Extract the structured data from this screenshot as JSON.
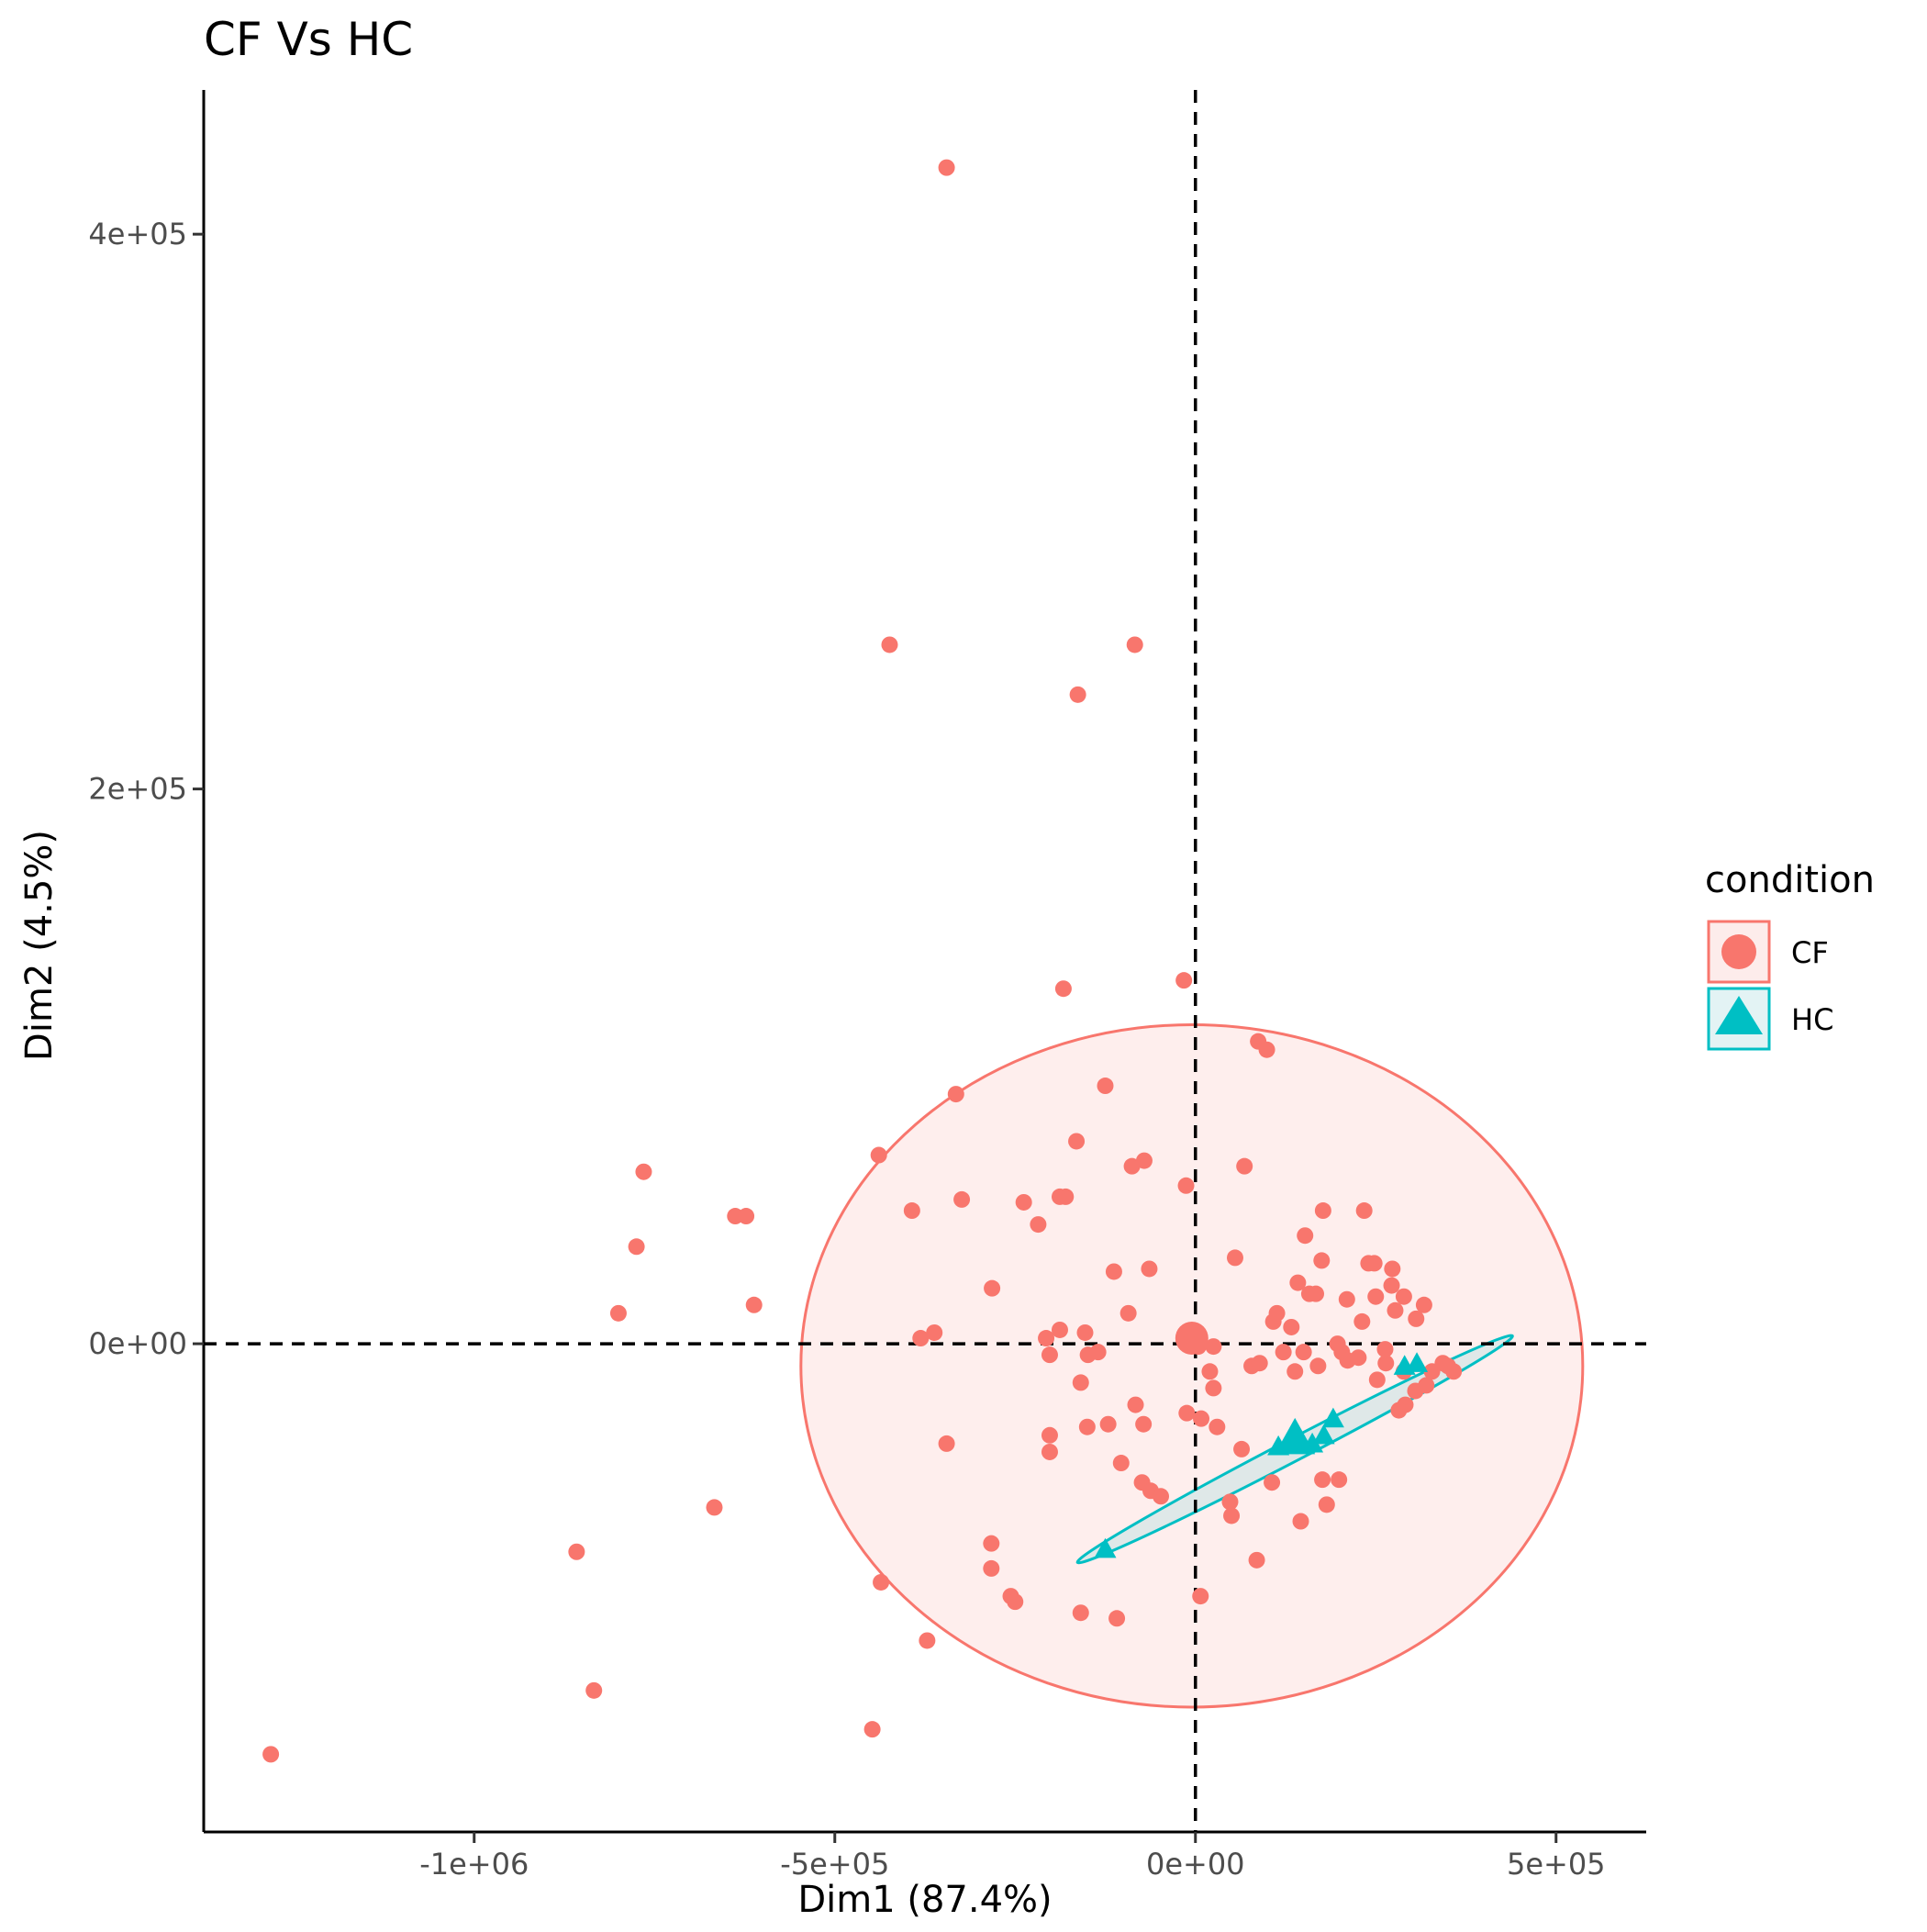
{
  "chart_data": {
    "type": "scatter",
    "title": "CF Vs HC",
    "xlabel": "Dim1 (87.4%)",
    "ylabel": "Dim2 (4.5%)",
    "xlim": [
      -1375000,
      625000
    ],
    "ylim": [
      -176000,
      452000
    ],
    "x_ticks": [
      {
        "value": -1000000,
        "label": "-1e+06"
      },
      {
        "value": -500000,
        "label": "-5e+05"
      },
      {
        "value": 0,
        "label": "0e+00"
      },
      {
        "value": 500000,
        "label": "5e+05"
      }
    ],
    "y_ticks": [
      {
        "value": 0,
        "label": "0e+00"
      },
      {
        "value": 200000,
        "label": "2e+05"
      },
      {
        "value": 400000,
        "label": "4e+05"
      }
    ],
    "grid": false,
    "reference_lines": {
      "x": 0,
      "y": 0,
      "style": "dashed"
    },
    "legend": {
      "title": "condition",
      "position": "right",
      "entries": [
        {
          "label": "CF",
          "color": "#F8766D",
          "shape": "circle"
        },
        {
          "label": "HC",
          "color": "#00BFC4",
          "shape": "triangle"
        }
      ]
    },
    "series": [
      {
        "name": "CF",
        "color": "#F8766D",
        "shape": "circle",
        "points": [
          [
            -345000,
            424000
          ],
          [
            -424000,
            252000
          ],
          [
            -84000,
            252000
          ],
          [
            -163000,
            234000
          ],
          [
            -1282000,
            -148000
          ],
          [
            -834000,
            -125000
          ],
          [
            -448000,
            -139000
          ],
          [
            -858000,
            -75000
          ],
          [
            -667000,
            -59000
          ],
          [
            -372000,
            -107000
          ],
          [
            -436000,
            -86000
          ],
          [
            -283000,
            -72000
          ],
          [
            -283000,
            -81000
          ],
          [
            -256000,
            -91000
          ],
          [
            -250000,
            -93000
          ],
          [
            -159000,
            -97000
          ],
          [
            -109000,
            -99000
          ],
          [
            7000,
            -91000
          ],
          [
            -765000,
            62000
          ],
          [
            -775000,
            35000
          ],
          [
            -800000,
            11000
          ],
          [
            -638000,
            46000
          ],
          [
            -623000,
            46000
          ],
          [
            -612000,
            14000
          ],
          [
            -439000,
            68000
          ],
          [
            -393000,
            48000
          ],
          [
            -332000,
            90000
          ],
          [
            -324000,
            52000
          ],
          [
            -282000,
            20000
          ],
          [
            -238000,
            51000
          ],
          [
            -218000,
            43000
          ],
          [
            -183000,
            128000
          ],
          [
            -188000,
            53000
          ],
          [
            -180000,
            53000
          ],
          [
            -165000,
            73000
          ],
          [
            -125000,
            93000
          ],
          [
            -113000,
            26000
          ],
          [
            -88000,
            64000
          ],
          [
            -71000,
            66000
          ],
          [
            -64000,
            27000
          ],
          [
            -16000,
            131000
          ],
          [
            -13000,
            57000
          ],
          [
            68000,
            64000
          ],
          [
            87000,
            109000
          ],
          [
            99000,
            106000
          ],
          [
            55000,
            31000
          ],
          [
            -381000,
            2000
          ],
          [
            -362000,
            4000
          ],
          [
            -207000,
            2000
          ],
          [
            -202000,
            -4000
          ],
          [
            -188000,
            5000
          ],
          [
            -153000,
            4000
          ],
          [
            -149000,
            -4000
          ],
          [
            -135000,
            -3000
          ],
          [
            -93000,
            11000
          ],
          [
            -159000,
            -14000
          ],
          [
            -83000,
            -22000
          ],
          [
            -72000,
            -29000
          ],
          [
            -202000,
            -33000
          ],
          [
            -202000,
            -39000
          ],
          [
            -150000,
            -30000
          ],
          [
            -121000,
            -29000
          ],
          [
            -345000,
            -36000
          ],
          [
            -103000,
            -43000
          ],
          [
            -74000,
            -50000
          ],
          [
            -62000,
            -53000
          ],
          [
            -48000,
            -55000
          ],
          [
            -12000,
            -25000
          ],
          [
            0,
            0
          ],
          [
            -5000,
            2000
          ],
          [
            4000,
            -1000
          ],
          [
            25000,
            -1000
          ],
          [
            20000,
            -10000
          ],
          [
            25000,
            -16000
          ],
          [
            8000,
            -27000
          ],
          [
            30000,
            -30000
          ],
          [
            64000,
            -38000
          ],
          [
            78000,
            -8000
          ],
          [
            89000,
            -7000
          ],
          [
            108000,
            8000
          ],
          [
            113000,
            11000
          ],
          [
            122000,
            -3000
          ],
          [
            133000,
            6000
          ],
          [
            150000,
            -3000
          ],
          [
            138000,
            -10000
          ],
          [
            170000,
            -8000
          ],
          [
            142000,
            22000
          ],
          [
            152000,
            39000
          ],
          [
            158000,
            18000
          ],
          [
            167000,
            18000
          ],
          [
            177000,
            48000
          ],
          [
            175000,
            30000
          ],
          [
            197000,
            0
          ],
          [
            203000,
            -3000
          ],
          [
            211000,
            -6000
          ],
          [
            210000,
            16000
          ],
          [
            226000,
            -5000
          ],
          [
            231000,
            8000
          ],
          [
            234000,
            48000
          ],
          [
            240000,
            29000
          ],
          [
            248000,
            29000
          ],
          [
            250000,
            17000
          ],
          [
            252000,
            -13000
          ],
          [
            263000,
            -2000
          ],
          [
            264000,
            -7000
          ],
          [
            272000,
            21000
          ],
          [
            273000,
            27000
          ],
          [
            277000,
            12000
          ],
          [
            289000,
            -10000
          ],
          [
            291000,
            -22000
          ],
          [
            282000,
            -24000
          ],
          [
            289000,
            17000
          ],
          [
            306000,
            9000
          ],
          [
            317000,
            14000
          ],
          [
            305000,
            -17000
          ],
          [
            320000,
            -15000
          ],
          [
            328000,
            -10000
          ],
          [
            343000,
            -7000
          ],
          [
            350000,
            -8000
          ],
          [
            358000,
            -10000
          ],
          [
            176000,
            -49000
          ],
          [
            199000,
            -49000
          ],
          [
            182000,
            -58000
          ],
          [
            106000,
            -50000
          ],
          [
            146000,
            -64000
          ],
          [
            50000,
            -62000
          ],
          [
            48000,
            -57000
          ],
          [
            85000,
            -78000
          ]
        ]
      },
      {
        "name": "HC",
        "color": "#00BFC4",
        "shape": "triangle",
        "points": [
          [
            -125000,
            -74000
          ],
          [
            115000,
            -37000
          ],
          [
            141000,
            -33000
          ],
          [
            144000,
            -35000
          ],
          [
            162000,
            -36000
          ],
          [
            178000,
            -33000
          ],
          [
            191000,
            -27000
          ],
          [
            290000,
            -8000
          ],
          [
            307000,
            -7000
          ]
        ]
      }
    ],
    "centroids": [
      {
        "series": "CF",
        "x": -5000,
        "y": 2000
      },
      {
        "series": "HC",
        "x": 138000,
        "y": -34000
      }
    ],
    "ellipses": [
      {
        "series": "CF",
        "cx": -5000,
        "cy": -8000,
        "rx": 542000,
        "ry": 123000,
        "angle_deg": 0
      },
      {
        "series": "HC",
        "cx": 138000,
        "cy": -38000,
        "rx": 340000,
        "ry": 11000,
        "angle_deg": 27.5
      }
    ]
  }
}
